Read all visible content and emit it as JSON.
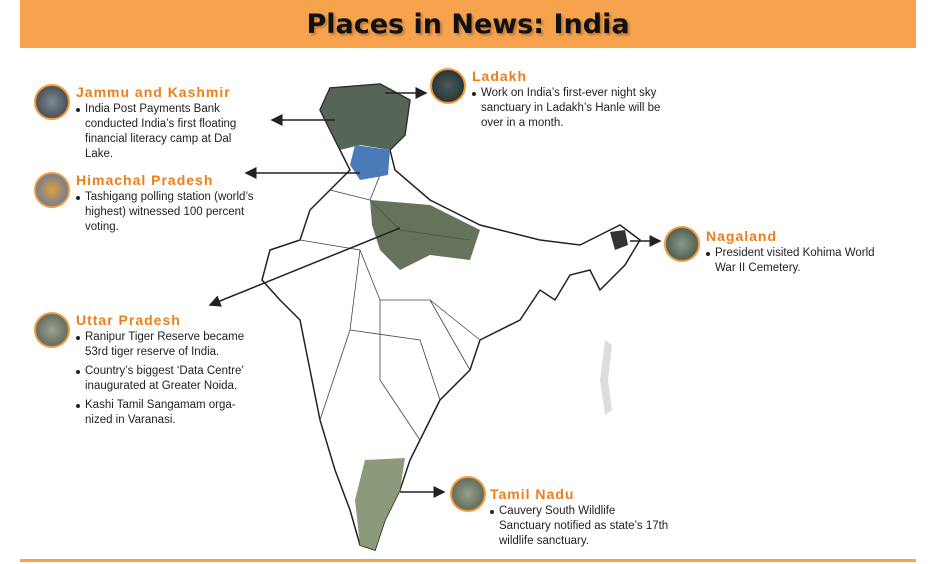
{
  "title": "Places in News: India",
  "colors": {
    "accent": "#f7a24c",
    "heading": "#ef7d1a"
  },
  "places": [
    {
      "name": "Jammu and Kashmir",
      "items": [
        "India Post Payments Bank conducted India’s first floating financial literacy camp at Dal Lake."
      ]
    },
    {
      "name": "Himachal Pradesh",
      "items": [
        "Tashigang polling station (world’s highest) witnessed 100 percent voting."
      ]
    },
    {
      "name": "Uttar Pradesh",
      "items": [
        "Ranipur Tiger Reserve became 53rd tiger reserve of India.",
        "Country’s biggest ‘Data Centre’ inaugurated at Greater Noida.",
        "Kashi Tamil Sangamam orga-nized in Varanasi."
      ]
    },
    {
      "name": "Ladakh",
      "items": [
        "Work on India’s first-ever night sky sanctuary in Ladakh’s Hanle will be over in a month."
      ]
    },
    {
      "name": "Nagaland",
      "items": [
        "President visited Kohima World War II Cemetery."
      ]
    },
    {
      "name": "Tamil Nadu",
      "items": [
        "Cauvery South Wildlife Sanctuary notified as state’s 17th wildlife sanctuary."
      ]
    }
  ]
}
